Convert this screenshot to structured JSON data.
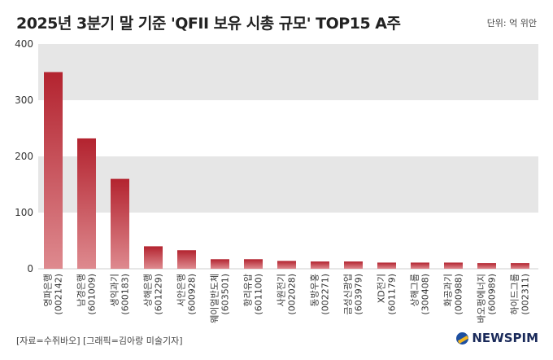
{
  "title": "2025년 3분기 말 기준 'QFII 보유 시총 규모' TOP15 A주",
  "unit_label": "단위: 억 위안",
  "source": "[자료=수쥐바오] [그래픽=김아랑 미술기자]",
  "logo": "NEWSPIM",
  "colors": {
    "bar_top": "#b3232f",
    "bar_bottom": "#de8a8f",
    "band": "#e6e6e6"
  },
  "chart_data": {
    "type": "bar",
    "categories": [
      [
        "영파은행",
        "(002142)"
      ],
      [
        "남경은행",
        "(601009)"
      ],
      [
        "생익과기",
        "(600183)"
      ],
      [
        "상해은행",
        "(601229)"
      ],
      [
        "서안은행",
        "(600928)"
      ],
      [
        "웨이얼반도체",
        "(603501)"
      ],
      [
        "항리유압",
        "(601100)"
      ],
      [
        "사원전기",
        "(002028)"
      ],
      [
        "동방우홍",
        "(002271)"
      ],
      [
        "금성신광업",
        "(603979)"
      ],
      [
        "XD전기",
        "(601179)"
      ],
      [
        "상해그룹",
        "(300408)"
      ],
      [
        "화공과기",
        "(000988)"
      ],
      [
        "바오펑에너지",
        "(600989)"
      ],
      [
        "하이드그룹",
        "(002311)"
      ]
    ],
    "values": [
      350,
      232,
      160,
      40,
      33,
      17,
      17,
      14,
      13,
      13,
      11,
      11,
      11,
      10,
      10
    ],
    "ylim": [
      0,
      400
    ],
    "yticks": [
      0,
      100,
      200,
      300,
      400
    ],
    "grid": "alternating horizontal bands"
  }
}
